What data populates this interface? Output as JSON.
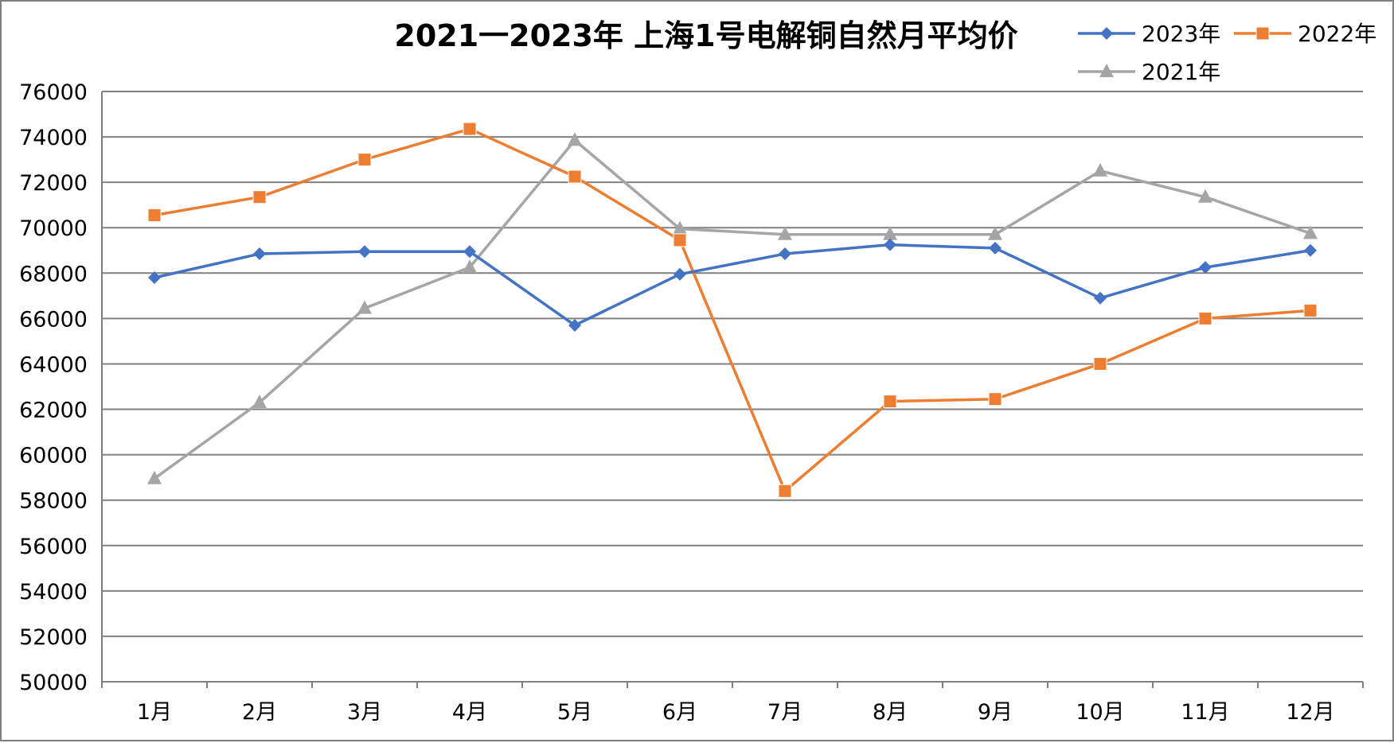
{
  "chart_data": {
    "type": "line",
    "title": "2021一2023年 上海1号电解铜自然月平均价",
    "xlabel": "",
    "ylabel": "",
    "categories": [
      "1月",
      "2月",
      "3月",
      "4月",
      "5月",
      "6月",
      "7月",
      "8月",
      "9月",
      "10月",
      "11月",
      "12月"
    ],
    "ylim": [
      50000,
      76000
    ],
    "yticks": [
      50000,
      52000,
      54000,
      56000,
      58000,
      60000,
      62000,
      64000,
      66000,
      68000,
      70000,
      72000,
      74000,
      76000
    ],
    "grid": true,
    "legend_position": "top-right",
    "series": [
      {
        "name": "2023年",
        "color": "#4472C4",
        "marker": "diamond",
        "values": [
          67800,
          68850,
          68950,
          68950,
          65700,
          67950,
          68850,
          69250,
          69100,
          66900,
          68250,
          69000
        ]
      },
      {
        "name": "2022年",
        "color": "#ED7D31",
        "marker": "square",
        "values": [
          70550,
          71350,
          73000,
          74350,
          72250,
          69450,
          58400,
          62350,
          62450,
          64000,
          66000,
          66350
        ]
      },
      {
        "name": "2021年",
        "color": "#A5A5A5",
        "marker": "triangle",
        "values": [
          58950,
          62300,
          66450,
          68250,
          73850,
          69950,
          69700,
          69700,
          69700,
          72500,
          71350,
          69750
        ]
      }
    ]
  }
}
